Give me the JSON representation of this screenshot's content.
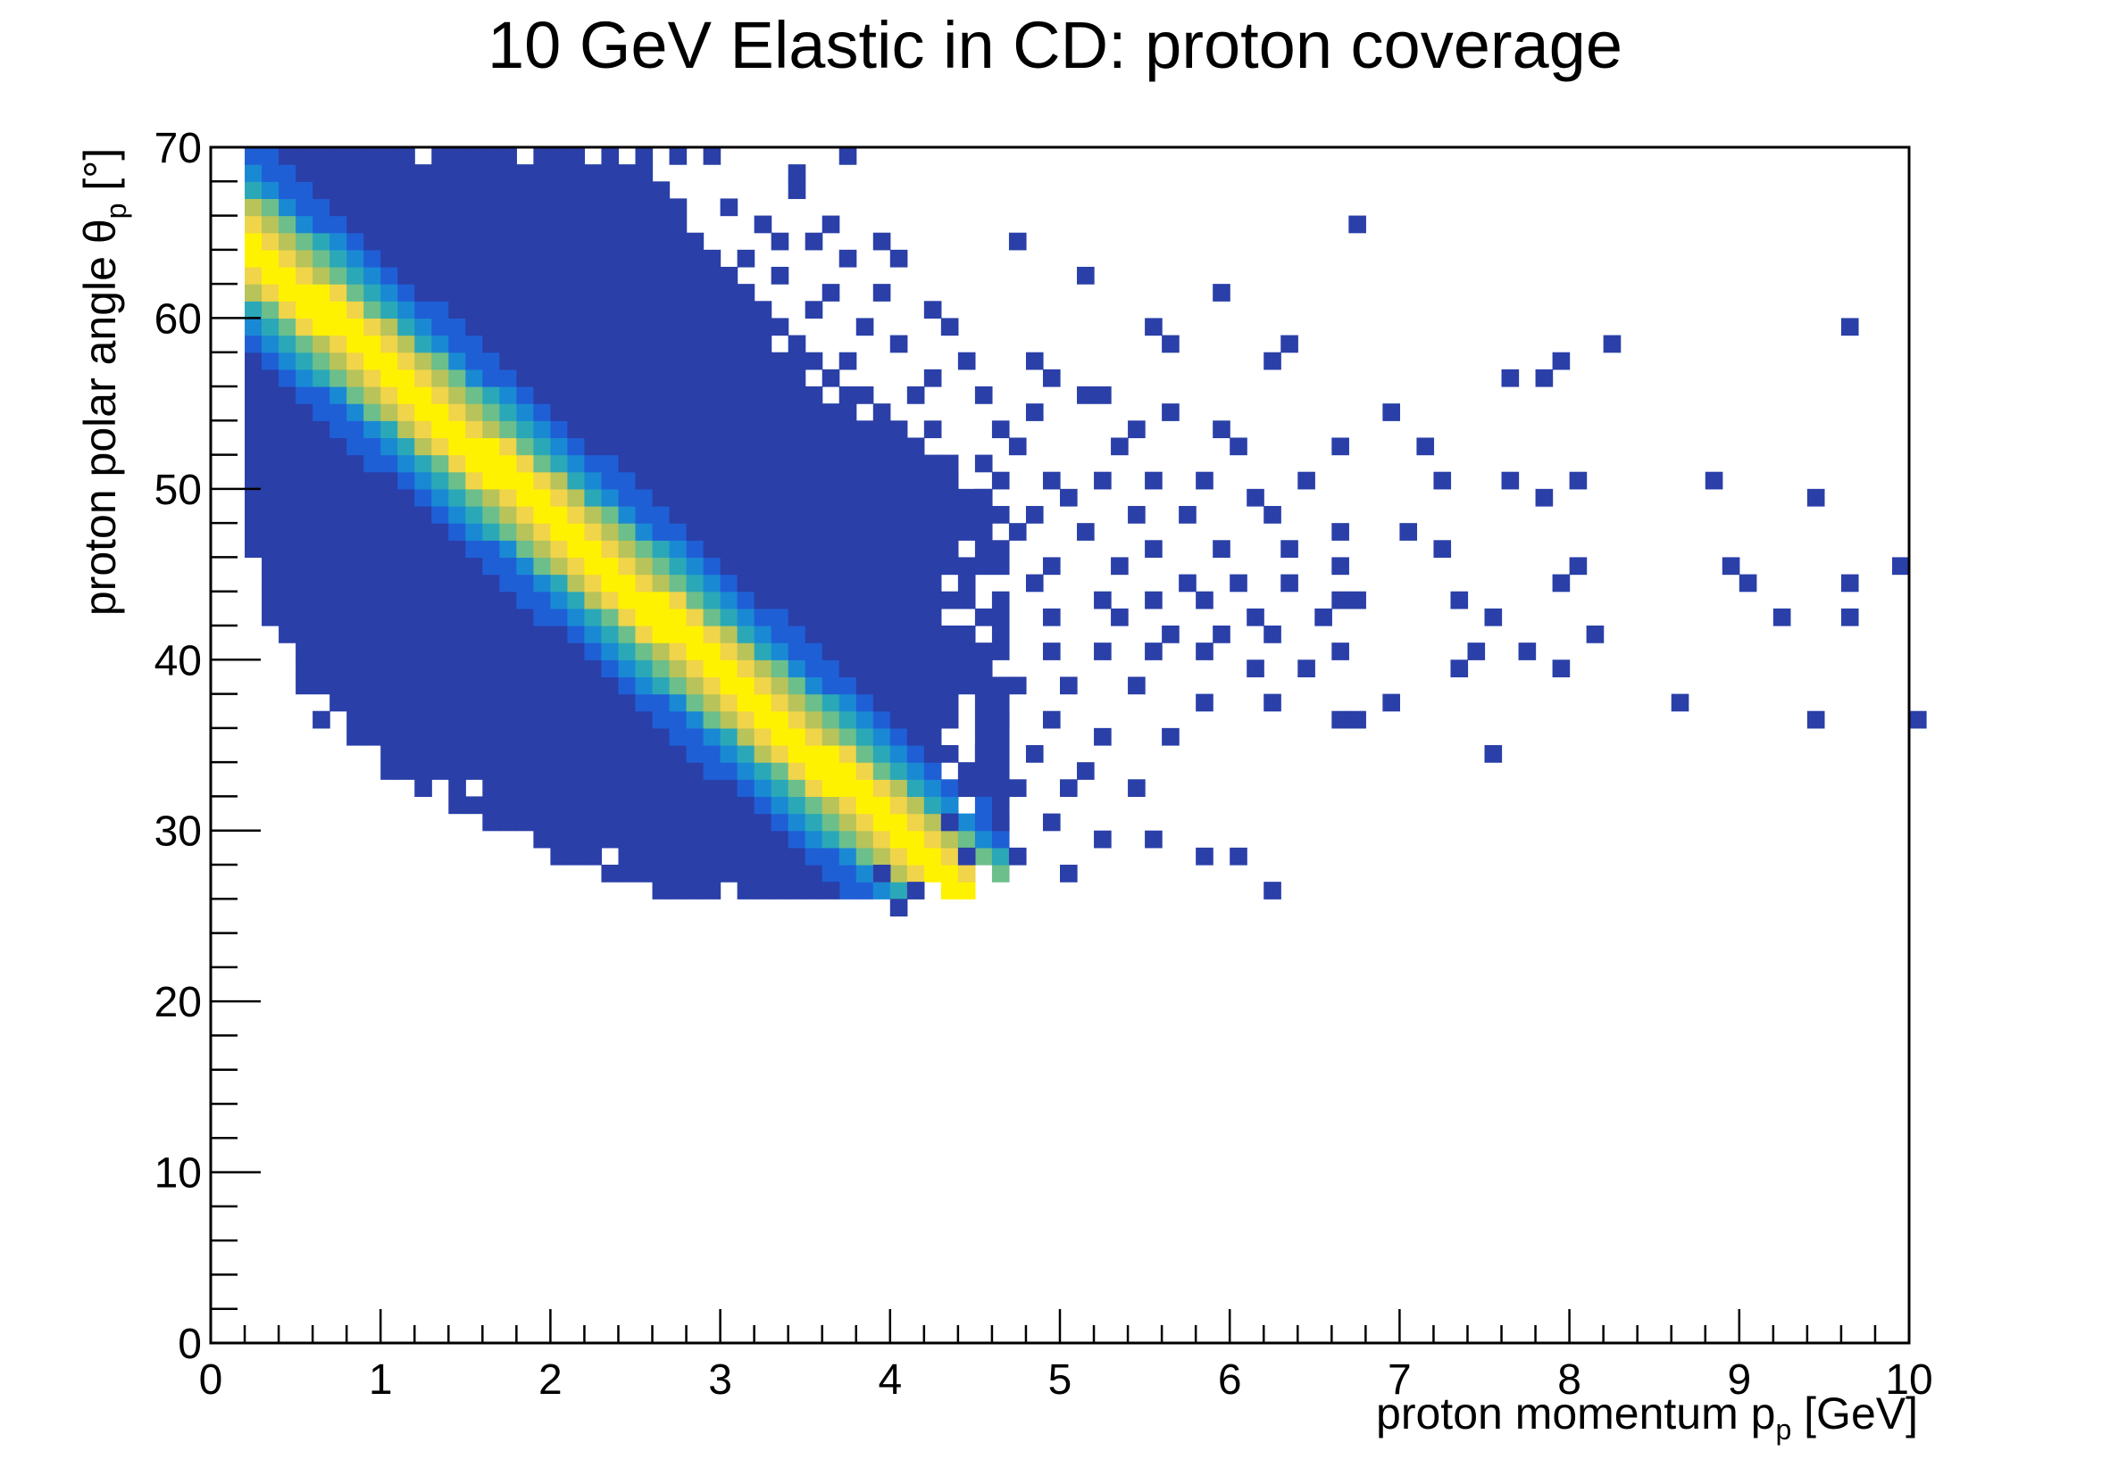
{
  "chart_data": {
    "type": "heatmap",
    "title": "10 GeV Elastic in CD: proton coverage",
    "xlabel": {
      "main": "proton momentum p",
      "sub": "p",
      "unit": " [GeV]"
    },
    "ylabel": {
      "main": "proton polar angle θ",
      "sub": "p",
      "unit": " [°]"
    },
    "xlim": [
      0,
      10
    ],
    "ylim": [
      0,
      70
    ],
    "x_ticks": [
      "0",
      "1",
      "2",
      "3",
      "4",
      "5",
      "6",
      "7",
      "8",
      "9",
      "10"
    ],
    "y_ticks": [
      "0",
      "10",
      "20",
      "30",
      "40",
      "50",
      "60",
      "70"
    ],
    "grid": false,
    "bin_width": {
      "x": 0.1,
      "y": 1
    },
    "colormap": [
      "#2a3fa8",
      "#1f5fd6",
      "#1a89d4",
      "#2aa8b8",
      "#6cbf8a",
      "#b8c35a",
      "#f0d44a",
      "#fff200"
    ],
    "band_color": "#2a3fa8",
    "band": {
      "x_edges": [
        0.2,
        4.7
      ],
      "upper_edge": [
        [
          0.2,
          70
        ],
        [
          2.5,
          70
        ],
        [
          2.8,
          66
        ],
        [
          3.1,
          62
        ],
        [
          3.5,
          58
        ],
        [
          4.0,
          54
        ],
        [
          4.5,
          50
        ],
        [
          4.7,
          48
        ]
      ],
      "lower_edge": [
        [
          0.2,
          48
        ],
        [
          0.4,
          41
        ],
        [
          0.7,
          36
        ],
        [
          1.0,
          34
        ],
        [
          1.4,
          32
        ],
        [
          1.8,
          30
        ],
        [
          2.2,
          28
        ],
        [
          2.6,
          27
        ],
        [
          3.0,
          26
        ],
        [
          3.5,
          26
        ],
        [
          4.0,
          26
        ],
        [
          4.5,
          27
        ],
        [
          4.7,
          28
        ]
      ]
    },
    "hotspot": {
      "center": [
        1.65,
        51.5
      ],
      "peak": 1.0
    },
    "sparse_points": [
      [
        2.7,
        69
      ],
      [
        2.9,
        69
      ],
      [
        3.7,
        69
      ],
      [
        3.4,
        68
      ],
      [
        3.4,
        67
      ],
      [
        2.4,
        67
      ],
      [
        2.6,
        67
      ],
      [
        2.7,
        66
      ],
      [
        3.0,
        66
      ],
      [
        3.2,
        65
      ],
      [
        2.4,
        65
      ],
      [
        2.7,
        65
      ],
      [
        3.6,
        65
      ],
      [
        3.9,
        64
      ],
      [
        3.1,
        63
      ],
      [
        3.5,
        64
      ],
      [
        4.0,
        63
      ],
      [
        3.3,
        64
      ],
      [
        3.7,
        63
      ],
      [
        4.7,
        64
      ],
      [
        3.3,
        62
      ],
      [
        3.6,
        61
      ],
      [
        3.9,
        61
      ],
      [
        5.1,
        62
      ],
      [
        5.9,
        61
      ],
      [
        4.2,
        60
      ],
      [
        3.5,
        60
      ],
      [
        3.8,
        59
      ],
      [
        4.3,
        59
      ],
      [
        5.5,
        59
      ],
      [
        3.0,
        58
      ],
      [
        3.4,
        57
      ],
      [
        3.7,
        57
      ],
      [
        4.0,
        58
      ],
      [
        4.4,
        57
      ],
      [
        4.8,
        57
      ],
      [
        5.6,
        58
      ],
      [
        6.2,
        57
      ],
      [
        4.2,
        56
      ],
      [
        4.5,
        55
      ],
      [
        4.1,
        55
      ],
      [
        5.2,
        55
      ],
      [
        4.9,
        56
      ],
      [
        5.6,
        54
      ],
      [
        5.9,
        53
      ],
      [
        3.9,
        54
      ],
      [
        4.2,
        53
      ],
      [
        4.6,
        53
      ],
      [
        4.8,
        54
      ],
      [
        5.1,
        55
      ],
      [
        5.4,
        53
      ],
      [
        4.0,
        52
      ],
      [
        4.5,
        51
      ],
      [
        4.7,
        52
      ],
      [
        5.3,
        52
      ],
      [
        6.0,
        52
      ],
      [
        4.3,
        50
      ],
      [
        4.6,
        50
      ],
      [
        4.9,
        50
      ],
      [
        5.2,
        50
      ],
      [
        5.5,
        50
      ],
      [
        5.8,
        50
      ],
      [
        6.1,
        49
      ],
      [
        4.5,
        49
      ],
      [
        4.8,
        48
      ],
      [
        5.0,
        49
      ],
      [
        5.4,
        48
      ],
      [
        5.7,
        48
      ],
      [
        6.2,
        48
      ],
      [
        6.6,
        47
      ],
      [
        4.2,
        47
      ],
      [
        4.7,
        47
      ],
      [
        5.1,
        47
      ],
      [
        5.5,
        46
      ],
      [
        5.9,
        46
      ],
      [
        6.3,
        46
      ],
      [
        6.6,
        45
      ],
      [
        4.9,
        45
      ],
      [
        5.3,
        45
      ],
      [
        5.7,
        44
      ],
      [
        6.0,
        44
      ],
      [
        6.3,
        44
      ],
      [
        6.6,
        43
      ],
      [
        4.8,
        44
      ],
      [
        5.2,
        43
      ],
      [
        5.5,
        43
      ],
      [
        5.8,
        43
      ],
      [
        6.1,
        42
      ],
      [
        6.5,
        42
      ],
      [
        6.7,
        43
      ],
      [
        4.9,
        42
      ],
      [
        5.3,
        42
      ],
      [
        5.6,
        41
      ],
      [
        5.9,
        41
      ],
      [
        6.2,
        41
      ],
      [
        6.6,
        40
      ],
      [
        4.9,
        40
      ],
      [
        5.2,
        40
      ],
      [
        5.5,
        40
      ],
      [
        5.8,
        40
      ],
      [
        6.1,
        39
      ],
      [
        6.4,
        39
      ],
      [
        4.7,
        38
      ],
      [
        5.0,
        38
      ],
      [
        5.4,
        38
      ],
      [
        5.8,
        37
      ],
      [
        6.2,
        37
      ],
      [
        6.6,
        36
      ],
      [
        4.6,
        36
      ],
      [
        4.9,
        36
      ],
      [
        5.2,
        35
      ],
      [
        5.6,
        35
      ],
      [
        4.5,
        34
      ],
      [
        4.8,
        34
      ],
      [
        5.1,
        33
      ],
      [
        4.4,
        32
      ],
      [
        4.7,
        32
      ],
      [
        5.0,
        32
      ],
      [
        5.4,
        32
      ],
      [
        4.3,
        30
      ],
      [
        4.6,
        30
      ],
      [
        4.9,
        30
      ],
      [
        5.2,
        29
      ],
      [
        5.5,
        29
      ],
      [
        5.8,
        28
      ],
      [
        6.0,
        28
      ],
      [
        4.4,
        28
      ],
      [
        4.7,
        28
      ],
      [
        5.0,
        27
      ],
      [
        6.2,
        26
      ],
      [
        3.9,
        27
      ],
      [
        4.1,
        26
      ],
      [
        3.6,
        26
      ],
      [
        4.0,
        25
      ],
      [
        6.7,
        65
      ],
      [
        6.9,
        54
      ],
      [
        7.1,
        52
      ],
      [
        7.2,
        50
      ],
      [
        7.6,
        50
      ],
      [
        7.8,
        49
      ],
      [
        8.0,
        50
      ],
      [
        8.8,
        50
      ],
      [
        9.4,
        49
      ],
      [
        7.0,
        47
      ],
      [
        7.2,
        46
      ],
      [
        8.0,
        45
      ],
      [
        8.9,
        45
      ],
      [
        9.9,
        45
      ],
      [
        7.9,
        44
      ],
      [
        9.0,
        44
      ],
      [
        9.6,
        44
      ],
      [
        7.3,
        43
      ],
      [
        7.5,
        42
      ],
      [
        8.1,
        41
      ],
      [
        9.2,
        42
      ],
      [
        9.6,
        42
      ],
      [
        7.4,
        40
      ],
      [
        7.7,
        40
      ],
      [
        7.3,
        39
      ],
      [
        7.9,
        39
      ],
      [
        6.9,
        37
      ],
      [
        6.7,
        36
      ],
      [
        8.6,
        37
      ],
      [
        9.4,
        36
      ],
      [
        10.0,
        36
      ],
      [
        7.5,
        34
      ],
      [
        7.6,
        56
      ],
      [
        7.8,
        56
      ],
      [
        7.9,
        57
      ],
      [
        8.2,
        58
      ],
      [
        9.6,
        59
      ],
      [
        6.3,
        58
      ],
      [
        6.6,
        52
      ],
      [
        6.4,
        50
      ]
    ]
  }
}
